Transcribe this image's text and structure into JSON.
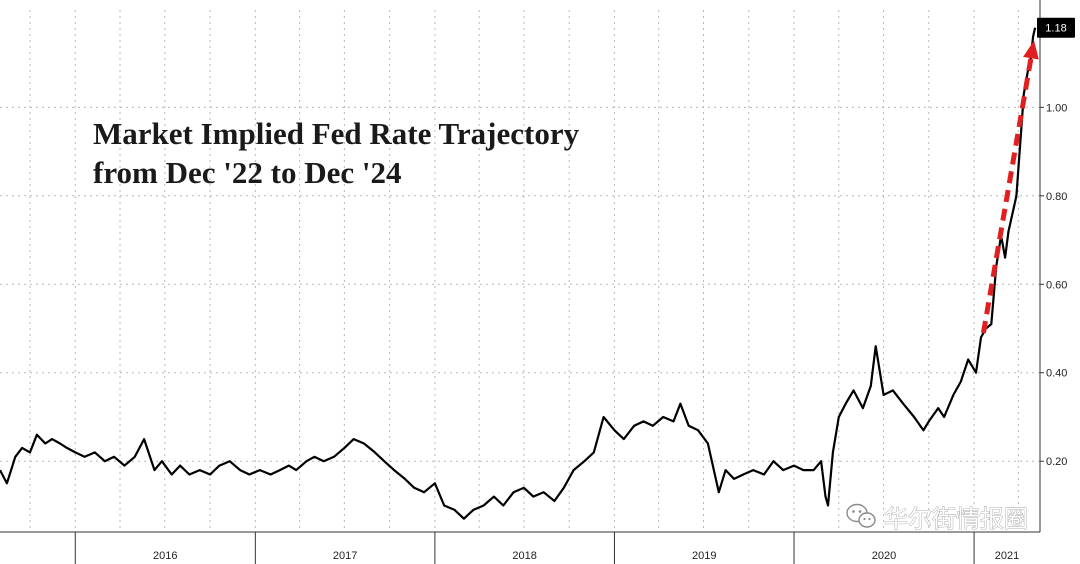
{
  "chart_data": {
    "type": "line",
    "title_lines": [
      "Market Implied Fed Rate Trajectory",
      "from Dec '22 to Dec '24"
    ],
    "xlabel": "",
    "ylabel": "",
    "x_tick_labels": [
      "2016",
      "2017",
      "2018",
      "2019",
      "2020",
      "2021"
    ],
    "xlim": [
      "2015-08-01",
      "2021-05-15"
    ],
    "ylim": [
      0.04,
      1.22
    ],
    "y_ticks": [
      0.2,
      0.4,
      0.6,
      0.8,
      1.0
    ],
    "y_tick_labels": [
      "0.20",
      "0.40",
      "0.60",
      "0.80",
      "1.00"
    ],
    "grid": true,
    "last_value_label": "1.18",
    "line_color": "#000000",
    "arrow_color": "#e02020",
    "series": [
      {
        "x": [
          "2015-08-01",
          "2015-08-15",
          "2015-09-01",
          "2015-09-15",
          "2015-10-01",
          "2015-10-15",
          "2015-11-01",
          "2015-11-15",
          "2015-12-01",
          "2015-12-15",
          "2016-01-01",
          "2016-01-20",
          "2016-02-10",
          "2016-03-01",
          "2016-03-20",
          "2016-04-10",
          "2016-05-01",
          "2016-05-20",
          "2016-06-10",
          "2016-06-25",
          "2016-07-15",
          "2016-08-01",
          "2016-08-20",
          "2016-09-10",
          "2016-10-01",
          "2016-10-20",
          "2016-11-10",
          "2016-12-01",
          "2016-12-20",
          "2017-01-10",
          "2017-02-01",
          "2017-02-20",
          "2017-03-10",
          "2017-03-25",
          "2017-04-15",
          "2017-05-01",
          "2017-05-20",
          "2017-06-10",
          "2017-07-01",
          "2017-07-20",
          "2017-08-10",
          "2017-09-01",
          "2017-09-20",
          "2017-10-10",
          "2017-11-01",
          "2017-11-20",
          "2017-12-10",
          "2018-01-01",
          "2018-01-20",
          "2018-02-10",
          "2018-03-01",
          "2018-03-20",
          "2018-04-10",
          "2018-05-01",
          "2018-05-20",
          "2018-06-10",
          "2018-07-01",
          "2018-07-20",
          "2018-08-10",
          "2018-09-01",
          "2018-09-20",
          "2018-10-10",
          "2018-11-01",
          "2018-11-20",
          "2018-12-10",
          "2019-01-01",
          "2019-01-20",
          "2019-02-10",
          "2019-03-01",
          "2019-03-20",
          "2019-04-10",
          "2019-05-01",
          "2019-05-15",
          "2019-06-01",
          "2019-06-20",
          "2019-07-10",
          "2019-08-01",
          "2019-08-15",
          "2019-09-01",
          "2019-09-20",
          "2019-10-10",
          "2019-11-01",
          "2019-11-20",
          "2019-12-10",
          "2020-01-01",
          "2020-01-20",
          "2020-02-10",
          "2020-02-25",
          "2020-03-05",
          "2020-03-10",
          "2020-03-20",
          "2020-04-01",
          "2020-04-15",
          "2020-05-01",
          "2020-05-20",
          "2020-06-05",
          "2020-06-15",
          "2020-07-01",
          "2020-07-20",
          "2020-08-10",
          "2020-09-01",
          "2020-09-20",
          "2020-10-01",
          "2020-10-20",
          "2020-11-01",
          "2020-11-20",
          "2020-12-05",
          "2020-12-20",
          "2021-01-05",
          "2021-01-15",
          "2021-01-25",
          "2021-02-05",
          "2021-02-15",
          "2021-02-25",
          "2021-03-05",
          "2021-03-12",
          "2021-03-20",
          "2021-03-28",
          "2021-04-05",
          "2021-04-12",
          "2021-04-20",
          "2021-04-25",
          "2021-05-01",
          "2021-05-05"
        ],
        "y": [
          0.18,
          0.15,
          0.21,
          0.23,
          0.22,
          0.26,
          0.24,
          0.25,
          0.24,
          0.23,
          0.22,
          0.21,
          0.22,
          0.2,
          0.21,
          0.19,
          0.21,
          0.25,
          0.18,
          0.2,
          0.17,
          0.19,
          0.17,
          0.18,
          0.17,
          0.19,
          0.2,
          0.18,
          0.17,
          0.18,
          0.17,
          0.18,
          0.19,
          0.18,
          0.2,
          0.21,
          0.2,
          0.21,
          0.23,
          0.25,
          0.24,
          0.22,
          0.2,
          0.18,
          0.16,
          0.14,
          0.13,
          0.15,
          0.1,
          0.09,
          0.07,
          0.09,
          0.1,
          0.12,
          0.1,
          0.13,
          0.14,
          0.12,
          0.13,
          0.11,
          0.14,
          0.18,
          0.2,
          0.22,
          0.3,
          0.27,
          0.25,
          0.28,
          0.29,
          0.28,
          0.3,
          0.29,
          0.33,
          0.28,
          0.27,
          0.24,
          0.13,
          0.18,
          0.16,
          0.17,
          0.18,
          0.17,
          0.2,
          0.18,
          0.19,
          0.18,
          0.18,
          0.2,
          0.12,
          0.1,
          0.22,
          0.3,
          0.33,
          0.36,
          0.32,
          0.37,
          0.46,
          0.35,
          0.36,
          0.33,
          0.3,
          0.27,
          0.29,
          0.32,
          0.3,
          0.35,
          0.38,
          0.43,
          0.4,
          0.48,
          0.5,
          0.51,
          0.64,
          0.71,
          0.66,
          0.72,
          0.76,
          0.8,
          0.92,
          1.03,
          1.08,
          1.1,
          1.16,
          1.18
        ]
      }
    ]
  },
  "watermark": {
    "icon": "wechat-icon",
    "text": "华尔街情报圈"
  }
}
